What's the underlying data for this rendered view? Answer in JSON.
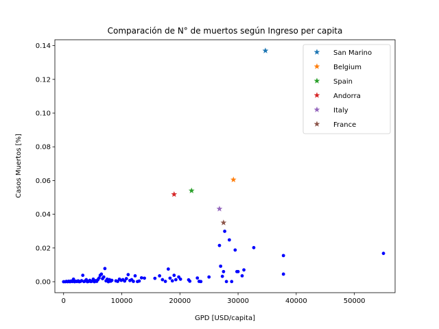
{
  "chart_data": {
    "type": "scatter",
    "title": "Comparación de N° de muertos según Ingreso per capita",
    "xlabel": "GPD [USD/capita]",
    "ylabel": "Casos Muertos [%]",
    "xlim": [
      -1500,
      57000
    ],
    "ylim": [
      -0.0065,
      0.1435
    ],
    "xticks": [
      0,
      10000,
      20000,
      30000,
      40000,
      50000
    ],
    "xtick_labels": [
      "0",
      "10000",
      "20000",
      "30000",
      "40000",
      "50000"
    ],
    "yticks": [
      0.0,
      0.02,
      0.04,
      0.06,
      0.08,
      0.1,
      0.12,
      0.14
    ],
    "ytick_labels": [
      "0.00",
      "0.02",
      "0.04",
      "0.06",
      "0.08",
      "0.10",
      "0.12",
      "0.14"
    ],
    "grid": false,
    "legend_position": "top-right",
    "base_series": {
      "color": "#0000ff",
      "marker": "dot",
      "points": [
        [
          0,
          0
        ],
        [
          300,
          0
        ],
        [
          500,
          0.0002
        ],
        [
          700,
          0
        ],
        [
          900,
          0.0003
        ],
        [
          1100,
          0
        ],
        [
          1300,
          0.0004
        ],
        [
          1500,
          0.0001
        ],
        [
          1700,
          0.0015
        ],
        [
          1900,
          0
        ],
        [
          2100,
          0.0003
        ],
        [
          2300,
          0.0001
        ],
        [
          2500,
          0.0005
        ],
        [
          2700,
          0
        ],
        [
          2900,
          0.0002
        ],
        [
          3100,
          0.0006
        ],
        [
          3300,
          0.0038
        ],
        [
          3500,
          0.0001
        ],
        [
          3700,
          0.0004
        ],
        [
          3900,
          0.0012
        ],
        [
          4100,
          0
        ],
        [
          4300,
          0.0002
        ],
        [
          4500,
          0.0008
        ],
        [
          4700,
          0.0001
        ],
        [
          4900,
          0.0003
        ],
        [
          5100,
          0.0015
        ],
        [
          5300,
          0
        ],
        [
          5500,
          0.0006
        ],
        [
          5700,
          0.0002
        ],
        [
          5900,
          0.0012
        ],
        [
          6100,
          0.0022
        ],
        [
          6300,
          0.0038
        ],
        [
          6500,
          0.0045
        ],
        [
          6700,
          0.0018
        ],
        [
          6900,
          0.0028
        ],
        [
          7100,
          0.0078
        ],
        [
          7300,
          0.0005
        ],
        [
          7500,
          0.0015
        ],
        [
          7700,
          0
        ],
        [
          7900,
          0.0012
        ],
        [
          8100,
          0.0003
        ],
        [
          8300,
          0.0008
        ],
        [
          9000,
          0.0005
        ],
        [
          9300,
          0.0002
        ],
        [
          9600,
          0.0015
        ],
        [
          9900,
          0.0008
        ],
        [
          10200,
          0.0012
        ],
        [
          10500,
          0.0004
        ],
        [
          10800,
          0.0018
        ],
        [
          11100,
          0.0042
        ],
        [
          11400,
          0.0007
        ],
        [
          11700,
          0.0012
        ],
        [
          12000,
          0.0002
        ],
        [
          12300,
          0.0035
        ],
        [
          12700,
          0.0001
        ],
        [
          13000,
          0.0004
        ],
        [
          13400,
          0.0023
        ],
        [
          13900,
          0.0021
        ],
        [
          15700,
          0.002
        ],
        [
          16500,
          0.0035
        ],
        [
          17000,
          0.0012
        ],
        [
          17500,
          0.0002
        ],
        [
          18000,
          0.0075
        ],
        [
          18300,
          0.0021
        ],
        [
          18700,
          0.0005
        ],
        [
          19000,
          0.0038
        ],
        [
          19300,
          0.0012
        ],
        [
          19800,
          0.0028
        ],
        [
          20100,
          0.0015
        ],
        [
          21500,
          0.0011
        ],
        [
          21700,
          0.0003
        ],
        [
          23000,
          0.0022
        ],
        [
          23300,
          0.0002
        ],
        [
          23600,
          0.0001
        ],
        [
          25000,
          0.0028
        ],
        [
          26800,
          0.0215
        ],
        [
          27000,
          0.0092
        ],
        [
          27300,
          0.0032
        ],
        [
          27500,
          0.006
        ],
        [
          27700,
          0.0299
        ],
        [
          28000,
          0.0001
        ],
        [
          28500,
          0.0248
        ],
        [
          28900,
          0.0001
        ],
        [
          29500,
          0.0188
        ],
        [
          29800,
          0.006
        ],
        [
          30000,
          0.006
        ],
        [
          30700,
          0.0035
        ],
        [
          31000,
          0.007
        ],
        [
          32700,
          0.0202
        ],
        [
          37800,
          0.0155
        ],
        [
          37800,
          0.0045
        ],
        [
          55000,
          0.0168
        ]
      ]
    },
    "series": [
      {
        "name": "San Marino",
        "color": "#1f77b4",
        "x": 34700,
        "y": 0.137
      },
      {
        "name": "Belgium",
        "color": "#ff7f0e",
        "x": 29200,
        "y": 0.0605
      },
      {
        "name": "Spain",
        "color": "#2ca02c",
        "x": 22000,
        "y": 0.054
      },
      {
        "name": "Andorra",
        "color": "#d62728",
        "x": 19000,
        "y": 0.0518
      },
      {
        "name": "Italy",
        "color": "#9467bd",
        "x": 26800,
        "y": 0.0432
      },
      {
        "name": "France",
        "color": "#8c564b",
        "x": 27500,
        "y": 0.035
      }
    ]
  }
}
